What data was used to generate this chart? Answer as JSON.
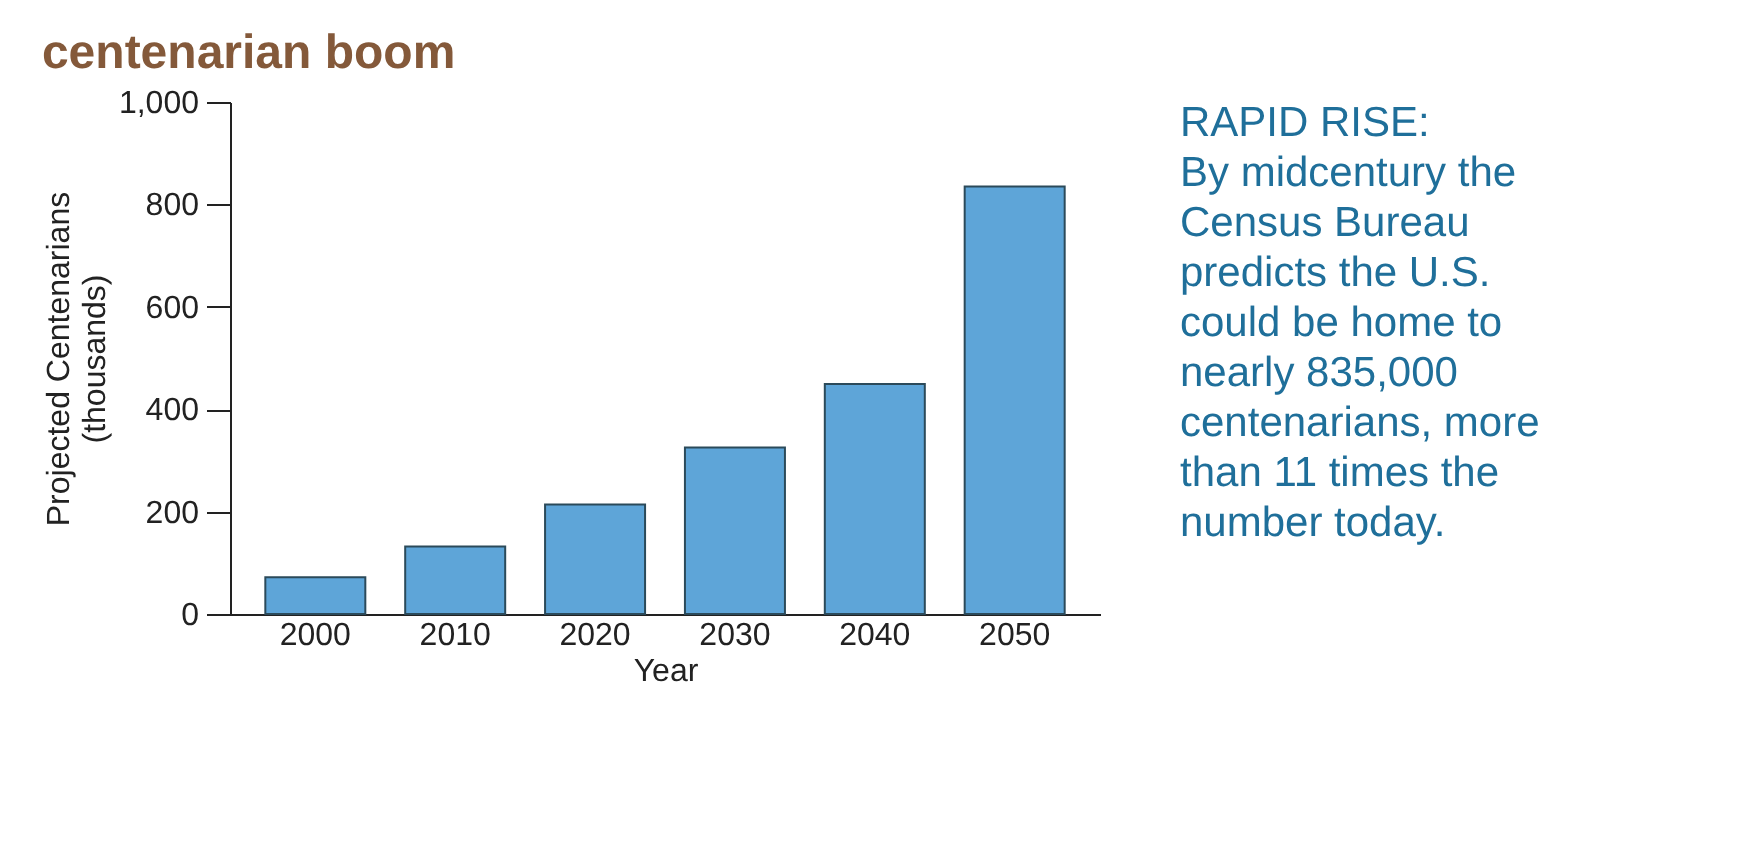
{
  "chart_data": {
    "type": "bar",
    "title": "centenarian boom",
    "categories": [
      "2000",
      "2010",
      "2020",
      "2030",
      "2040",
      "2050"
    ],
    "values": [
      72,
      132,
      214,
      325,
      449,
      835
    ],
    "color": "#5ea5d8",
    "xlabel": "Year",
    "ylabel": "Projected Centenarians (thousands)",
    "ylim": [
      0,
      1000
    ],
    "yticks": [
      0,
      200,
      400,
      600,
      800,
      {
        "value": 1000,
        "label": "1,000"
      }
    ],
    "grid": false,
    "annotations": [
      "RAPID RISE:",
      "By midcentury the Census Bureau predicts the U.S. could be home to nearly 835,000 centenarians, more than 11 times the number today."
    ]
  }
}
